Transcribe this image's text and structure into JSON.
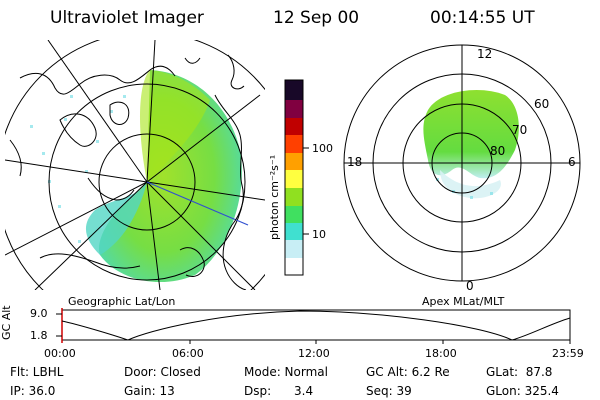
{
  "header": {
    "instrument": "Ultraviolet Imager",
    "date": "12 Sep 00",
    "time": "00:14:55 UT"
  },
  "left_panel": {
    "caption": "Geographic Lat/Lon"
  },
  "right_panel": {
    "caption": "Apex MLat/MLT",
    "mlt_labels": [
      "12",
      "18",
      "6",
      "0"
    ],
    "mlat_labels": [
      "60",
      "70",
      "80"
    ]
  },
  "colorbar": {
    "unit_label": "photon cm⁻²s⁻¹",
    "scale": "log",
    "tick_labels": [
      "100",
      "10"
    ],
    "colors": [
      "#ffffff",
      "#c8eef5",
      "#40e0d0",
      "#40e060",
      "#90e020",
      "#ffff40",
      "#ffa000",
      "#ff4000",
      "#c00000",
      "#800040",
      "#180828"
    ]
  },
  "altitude_plot": {
    "axis_label": "GC Alt",
    "y_ticks": [
      "9.0",
      "1.8"
    ],
    "x_ticks": [
      "00:00",
      "06:00",
      "12:00",
      "18:00",
      "23:59"
    ]
  },
  "info": {
    "flt": "Flt: LBHL",
    "ip": "IP: 36.0",
    "door": "Door: Closed",
    "gain": "Gain: 13",
    "mode": "Mode: Normal",
    "dsp": "Dsp:      3.4",
    "gcalt": "GC Alt: 6.2 Re",
    "seq": "Seq: 39",
    "glat": "GLat:  87.8",
    "glon": "GLon: 325.4"
  }
}
